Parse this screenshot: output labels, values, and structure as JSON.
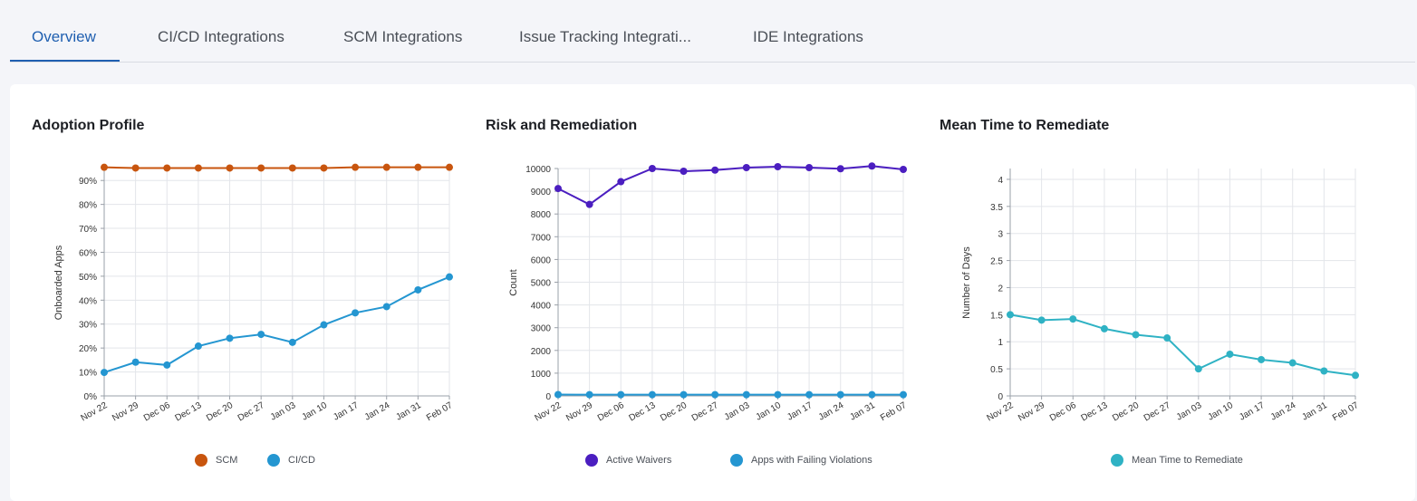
{
  "tabs": [
    {
      "label": "Overview",
      "active": true
    },
    {
      "label": "CI/CD Integrations",
      "active": false
    },
    {
      "label": "SCM Integrations",
      "active": false
    },
    {
      "label": "Issue Tracking Integrati...",
      "active": false
    },
    {
      "label": "IDE Integrations",
      "active": false
    }
  ],
  "colors": {
    "accent": "#1f5fb0",
    "scm": "#c8550e",
    "cicd": "#2496d1",
    "waivers": "#4b1ec0",
    "failing": "#2496d1",
    "mttr": "#2fb2c4"
  },
  "chart_data": [
    {
      "type": "line",
      "title": "Adoption Profile",
      "xlabel": "",
      "ylabel": "Onboarded Apps",
      "categories": [
        "Nov 22",
        "Nov 29",
        "Dec 06",
        "Dec 13",
        "Dec 20",
        "Dec 27",
        "Jan 03",
        "Jan 10",
        "Jan 17",
        "Jan 24",
        "Jan 31",
        "Feb 07"
      ],
      "yticks": [
        "0%",
        "10%",
        "20%",
        "30%",
        "40%",
        "50%",
        "60%",
        "70%",
        "80%",
        "90%"
      ],
      "ylim": [
        0,
        95
      ],
      "grid": true,
      "legend": "bottom-center",
      "series": [
        {
          "name": "SCM",
          "values": [
            95.5,
            95.2,
            95.2,
            95.2,
            95.2,
            95.2,
            95.2,
            95.2,
            95.5,
            95.5,
            95.5,
            95.5
          ]
        },
        {
          "name": "CI/CD",
          "values": [
            9.8,
            14.1,
            12.9,
            20.8,
            24.1,
            25.7,
            22.4,
            29.7,
            34.7,
            37.3,
            44.3,
            49.7
          ]
        }
      ]
    },
    {
      "type": "line",
      "title": "Risk and Remediation",
      "xlabel": "",
      "ylabel": "Count",
      "categories": [
        "Nov 22",
        "Nov 29",
        "Dec 06",
        "Dec 13",
        "Dec 20",
        "Dec 27",
        "Jan 03",
        "Jan 10",
        "Jan 17",
        "Jan 24",
        "Jan 31",
        "Feb 07"
      ],
      "yticks": [
        "0",
        "1000",
        "2000",
        "3000",
        "4000",
        "5000",
        "6000",
        "7000",
        "8000",
        "9000",
        "10000"
      ],
      "ylim": [
        0,
        10000
      ],
      "grid": true,
      "legend": "bottom-center",
      "series": [
        {
          "name": "Active Waivers",
          "values": [
            9120,
            8420,
            9420,
            10000,
            9880,
            9930,
            10040,
            10080,
            10040,
            9990,
            10110,
            9960
          ]
        },
        {
          "name": "Apps with Failing Violations",
          "values": [
            60,
            55,
            55,
            55,
            55,
            55,
            55,
            55,
            55,
            55,
            55,
            55
          ]
        }
      ]
    },
    {
      "type": "line",
      "title": "Mean Time to Remediate",
      "xlabel": "",
      "ylabel": "Number of Days",
      "categories": [
        "Nov 22",
        "Nov 29",
        "Dec 06",
        "Dec 13",
        "Dec 20",
        "Dec 27",
        "Jan 03",
        "Jan 10",
        "Jan 17",
        "Jan 24",
        "Jan 31",
        "Feb 07"
      ],
      "yticks": [
        "0",
        "0.5",
        "1",
        "1.5",
        "2",
        "2.5",
        "3",
        "3.5",
        "4"
      ],
      "ylim": [
        0,
        4.2
      ],
      "grid": true,
      "legend": "bottom-center",
      "series": [
        {
          "name": "Mean Time to Remediate",
          "values": [
            1.5,
            1.4,
            1.42,
            1.24,
            1.13,
            1.07,
            0.5,
            0.77,
            0.67,
            0.61,
            0.46,
            0.38
          ]
        }
      ]
    }
  ]
}
